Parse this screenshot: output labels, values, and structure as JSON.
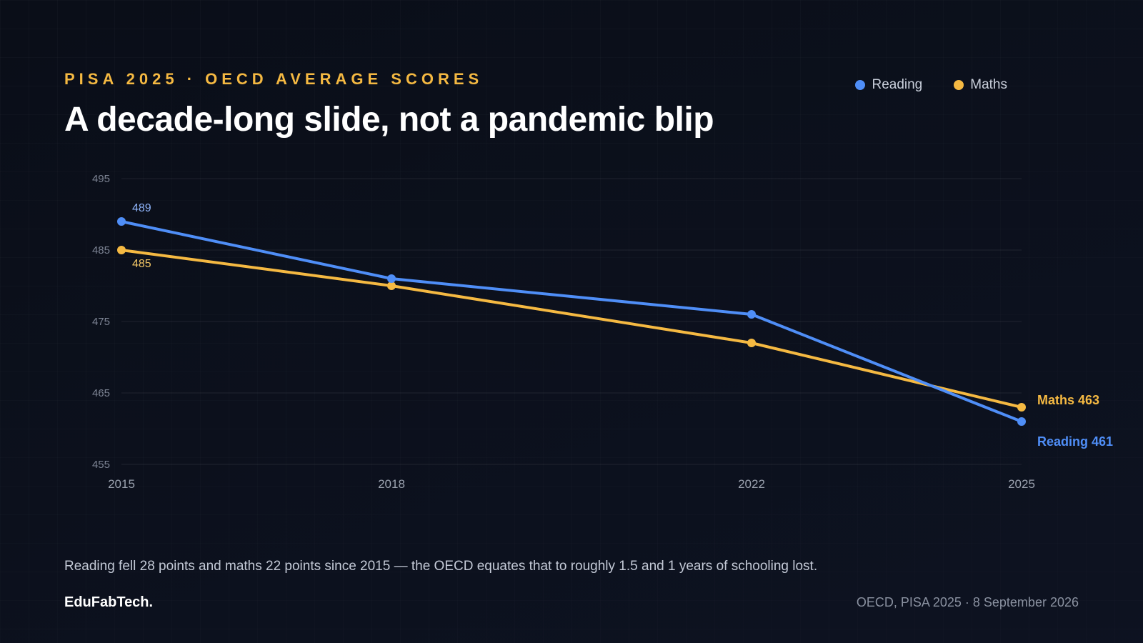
{
  "header": {
    "eyebrow": "PISA 2025 · OECD AVERAGE SCORES",
    "title": "A decade-long slide, not a pandemic blip"
  },
  "legend": [
    {
      "label": "Reading",
      "color": "#4f8ef7"
    },
    {
      "label": "Maths",
      "color": "#f5b942"
    }
  ],
  "chart_data": {
    "type": "line",
    "title": "A decade-long slide, not a pandemic blip",
    "x": [
      2015,
      2018,
      2022,
      2025
    ],
    "x_tick_labels": [
      "2015",
      "2018",
      "2022",
      "2025"
    ],
    "y_ticks": [
      455,
      465,
      475,
      485,
      495
    ],
    "ylim": [
      455,
      495
    ],
    "grid": "horizontal",
    "legend_position": "top-right",
    "series": [
      {
        "name": "Reading",
        "color": "#4f8ef7",
        "values": [
          489,
          481,
          476,
          461
        ],
        "start_label": "489",
        "end_label": "Reading 461"
      },
      {
        "name": "Maths",
        "color": "#f5b942",
        "values": [
          485,
          480,
          472,
          463
        ],
        "start_label": "485",
        "end_label": "Maths 463"
      }
    ]
  },
  "footer": {
    "caption": "Reading fell 28 points and maths 22 points since 2015 — the OECD equates that to roughly 1.5 and 1 years of schooling lost.",
    "brand": "EduFabTech.",
    "source": "OECD, PISA 2025 · 8 September 2026"
  }
}
